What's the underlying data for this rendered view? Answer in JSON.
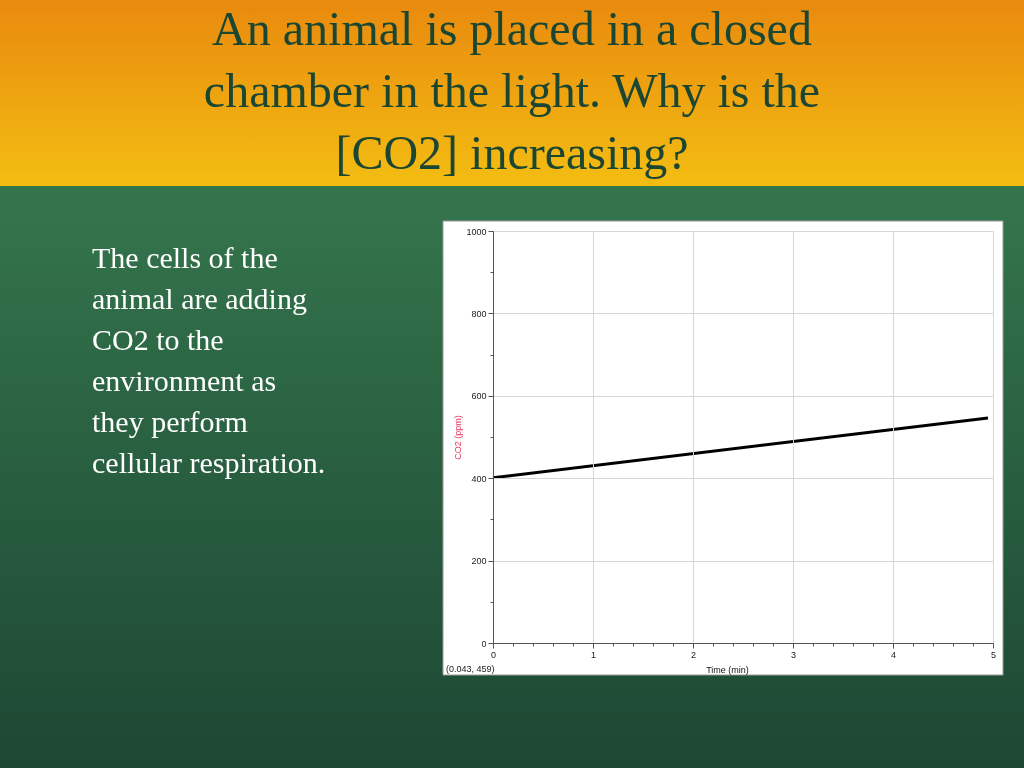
{
  "chart_data": {
    "type": "line",
    "title": "An animal is placed in a closed\nchamber in the light.  Why is the\n[CO2] increasing?",
    "annotations": [
      "The cells of the\nanimal are adding\nCO2 to the\nenvironment as\nthey perform\ncellular respiration.",
      "(0.043, 459)"
    ],
    "xlabel": "Time (min)",
    "ylabel": "CO2 (ppm)",
    "x": [
      0,
      4.95
    ],
    "series": [
      {
        "color": "#000000",
        "values": [
          401,
          546
        ]
      }
    ],
    "xlim": [
      0,
      5
    ],
    "ylim": [
      0,
      1000
    ],
    "xticks": [
      0,
      {
        "value": 0.2,
        "label": null
      },
      {
        "value": 0.4,
        "label": null
      },
      {
        "value": 0.6,
        "label": null
      },
      {
        "value": 0.8,
        "label": null
      },
      1,
      {
        "value": 1.2,
        "label": null
      },
      {
        "value": 1.4,
        "label": null
      },
      {
        "value": 1.6,
        "label": null
      },
      {
        "value": 1.8,
        "label": null
      },
      2,
      {
        "value": 2.2,
        "label": null
      },
      {
        "value": 2.4,
        "label": null
      },
      {
        "value": 2.6,
        "label": null
      },
      {
        "value": 2.8,
        "label": null
      },
      3,
      {
        "value": 3.2,
        "label": null
      },
      {
        "value": 3.4,
        "label": null
      },
      {
        "value": 3.6,
        "label": null
      },
      {
        "value": 3.8,
        "label": null
      },
      4,
      {
        "value": 4.2,
        "label": null
      },
      {
        "value": 4.4,
        "label": null
      },
      {
        "value": 4.6,
        "label": null
      },
      {
        "value": 4.8,
        "label": null
      },
      5
    ],
    "yticks": [
      0,
      {
        "value": 100,
        "label": null
      },
      200,
      {
        "value": 300,
        "label": null
      },
      400,
      {
        "value": 500,
        "label": null
      },
      600,
      {
        "value": 700,
        "label": null
      },
      800,
      {
        "value": 900,
        "label": null
      },
      1000
    ],
    "grid": true
  }
}
